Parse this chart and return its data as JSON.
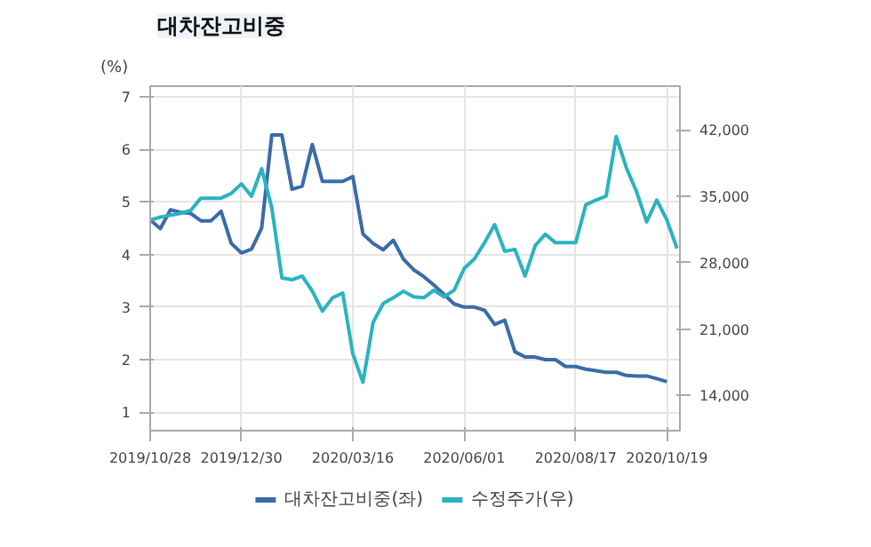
{
  "chart_data": {
    "type": "line",
    "title": "대차잔고비중",
    "ylabel": "(%)",
    "x": [
      "2019-10-28",
      "2019-11-04",
      "2019-11-11",
      "2019-11-18",
      "2019-11-25",
      "2019-12-02",
      "2019-12-09",
      "2019-12-16",
      "2019-12-23",
      "2019-12-30",
      "2020-01-06",
      "2020-01-13",
      "2020-01-20",
      "2020-01-27",
      "2020-02-03",
      "2020-02-10",
      "2020-02-17",
      "2020-02-24",
      "2020-03-02",
      "2020-03-09",
      "2020-03-16",
      "2020-03-23",
      "2020-03-30",
      "2020-04-06",
      "2020-04-13",
      "2020-04-20",
      "2020-04-27",
      "2020-05-04",
      "2020-05-11",
      "2020-05-18",
      "2020-05-25",
      "2020-06-01",
      "2020-06-08",
      "2020-06-15",
      "2020-06-22",
      "2020-06-29",
      "2020-07-06",
      "2020-07-13",
      "2020-07-20",
      "2020-07-27",
      "2020-08-03",
      "2020-08-10",
      "2020-08-17",
      "2020-08-24",
      "2020-08-31",
      "2020-09-07",
      "2020-09-14",
      "2020-09-21",
      "2020-09-28",
      "2020-10-05",
      "2020-10-12",
      "2020-10-19",
      "2020-10-26"
    ],
    "series": [
      {
        "name": "대차잔고비중(좌)",
        "color": "#3b6ba8",
        "values": [
          4.66,
          4.49,
          4.85,
          4.8,
          4.78,
          4.64,
          4.64,
          4.82,
          4.21,
          4.03,
          4.1,
          4.5,
          6.27,
          6.27,
          5.24,
          5.3,
          6.09,
          5.39,
          5.39,
          5.39,
          5.48,
          4.39,
          4.21,
          4.09,
          4.27,
          3.91,
          3.71,
          3.58,
          3.42,
          3.24,
          3.06,
          3.0,
          3.0,
          2.94,
          2.67,
          2.75,
          2.15,
          2.05,
          2.05,
          2.0,
          2.0,
          1.87,
          1.87,
          1.82,
          1.79,
          1.76,
          1.76,
          1.7,
          1.69,
          1.69,
          1.64,
          1.58,
          null
        ]
      },
      {
        "name": "수정주가(우)",
        "color": "#2bb3bf",
        "axis": "y2",
        "values": [
          32500,
          32800,
          33000,
          33200,
          33500,
          34800,
          34800,
          34800,
          35300,
          36300,
          35000,
          37900,
          33800,
          26400,
          26200,
          26600,
          25000,
          22900,
          24300,
          24800,
          18400,
          15400,
          21700,
          23700,
          24300,
          25000,
          24400,
          24300,
          25100,
          24400,
          25100,
          27400,
          28400,
          30100,
          32000,
          29200,
          29400,
          26600,
          29800,
          31000,
          30100,
          30100,
          30100,
          34100,
          34600,
          35000,
          41300,
          38000,
          35500,
          32300,
          34600,
          32500,
          29500
        ]
      }
    ],
    "xlim": [
      "2019-10-28",
      "2020-10-28"
    ],
    "xticks": [
      {
        "value": "2019-10-28",
        "label": "2019/10/28"
      },
      {
        "value": "2019-12-30",
        "label": "2019/12/30"
      },
      {
        "value": "2020-03-16",
        "label": "2020/03/16"
      },
      {
        "value": "2020-06-01",
        "label": "2020/06/01"
      },
      {
        "value": "2020-08-17",
        "label": "2020/08/17"
      },
      {
        "value": "2020-10-19",
        "label": "2020/10/19"
      }
    ],
    "ylim": [
      0.65,
      7.2
    ],
    "yticks": [
      1,
      2,
      3,
      4,
      5,
      6,
      7
    ],
    "y2lim": [
      10300,
      46600
    ],
    "y2ticks": [
      {
        "value": 14000,
        "label": "14,000"
      },
      {
        "value": 21000,
        "label": "21,000"
      },
      {
        "value": 28000,
        "label": "28,000"
      },
      {
        "value": 35000,
        "label": "35,000"
      },
      {
        "value": 42000,
        "label": "42,000"
      }
    ],
    "grid": true,
    "legend": "bottom",
    "line_style": "solid"
  }
}
